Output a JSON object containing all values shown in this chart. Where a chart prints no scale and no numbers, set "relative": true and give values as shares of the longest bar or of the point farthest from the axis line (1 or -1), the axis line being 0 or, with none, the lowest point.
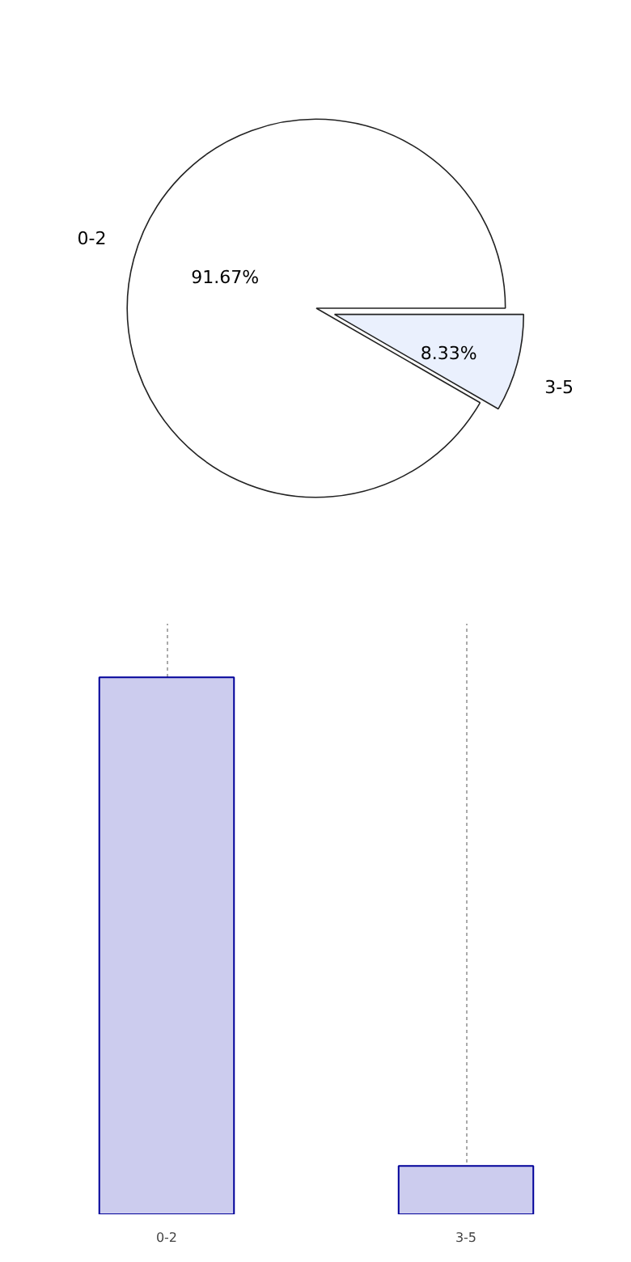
{
  "chart_data": [
    {
      "type": "pie",
      "categories": [
        "0-2",
        "3-5"
      ],
      "values": [
        91.67,
        8.33
      ],
      "colors": [
        "#ffffff",
        "#eaf0fd"
      ],
      "value_labels": [
        "91.67%",
        "8.33%"
      ]
    },
    {
      "type": "bar",
      "categories": [
        "0-2",
        "3-5"
      ],
      "values": [
        1,
        0.09
      ],
      "color": "#ccccee",
      "relative": true,
      "grid": "x"
    }
  ]
}
